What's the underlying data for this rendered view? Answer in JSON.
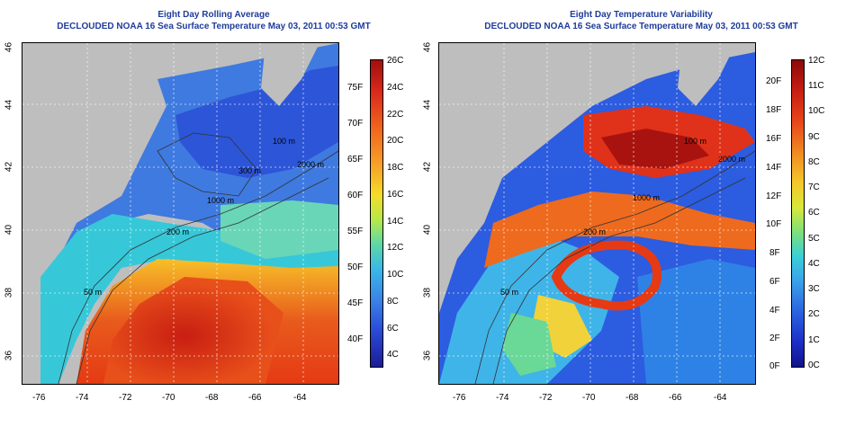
{
  "left_panel": {
    "title": "Eight Day Rolling Average",
    "subtitle": "DECLOUDED NOAA 16 Sea Surface Temperature May 03, 2011 00:53 GMT",
    "colorbar_celsius": [
      "26C",
      "24C",
      "22C",
      "20C",
      "18C",
      "16C",
      "14C",
      "12C",
      "10C",
      "8C",
      "6C",
      "4C"
    ],
    "colorbar_fahrenheit": [
      "75F",
      "70F",
      "65F",
      "60F",
      "55F",
      "50F",
      "45F",
      "40F"
    ],
    "contours": [
      "100 m",
      "200 m",
      "300 m",
      "1000 m",
      "2000 m",
      "50 m",
      "200 m"
    ]
  },
  "right_panel": {
    "title": "Eight Day Temperature Variability",
    "subtitle": "DECLOUDED NOAA 16 Sea Surface Temperature May 03, 2011 00:53 GMT",
    "colorbar_fahrenheit": [
      "20F",
      "18F",
      "16F",
      "14F",
      "12F",
      "10F",
      "8F",
      "6F",
      "4F",
      "2F",
      "0F"
    ],
    "colorbar_celsius": [
      "12C",
      "11C",
      "10C",
      "9C",
      "8C",
      "7C",
      "6C",
      "5C",
      "4C",
      "3C",
      "2C",
      "1C",
      "0C"
    ],
    "contours": [
      "100 m",
      "1000 m",
      "2000 m",
      "200 m",
      "50 m"
    ]
  },
  "axes": {
    "longitude_ticks": [
      "-76",
      "-74",
      "-72",
      "-70",
      "-68",
      "-66",
      "-64"
    ],
    "latitude_ticks": [
      "46",
      "44",
      "42",
      "40",
      "38",
      "36"
    ]
  },
  "colors": {
    "title": "#1f3c9c",
    "land": "#bebebe"
  }
}
